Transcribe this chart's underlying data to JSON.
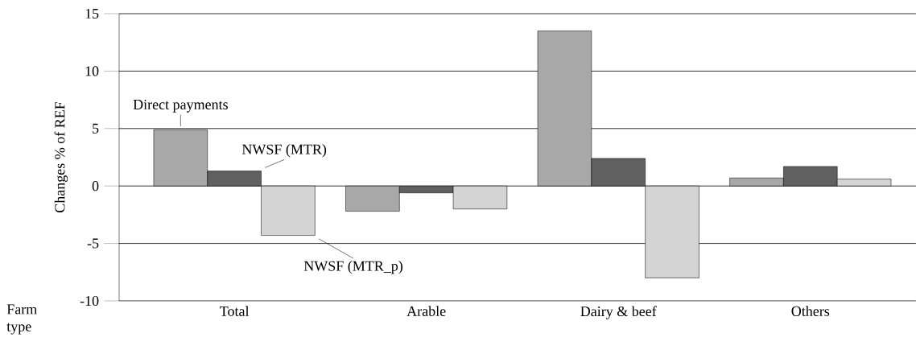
{
  "chart_data": {
    "type": "bar",
    "xlabel": "Farm type",
    "ylabel": "Changes  % of REF",
    "categories": [
      "Total",
      "Arable",
      "Dairy & beef",
      "Others"
    ],
    "series": [
      {
        "name": "Direct payments",
        "color": "#a8a8a8",
        "values": [
          4.9,
          -2.2,
          13.5,
          0.7
        ]
      },
      {
        "name": "NWSF (MTR)",
        "color": "#606060",
        "values": [
          1.3,
          -0.6,
          2.4,
          1.7
        ]
      },
      {
        "name": "NWSF (MTR_p)",
        "color": "#d4d4d4",
        "values": [
          -4.3,
          -2.0,
          -8.0,
          0.6
        ]
      }
    ],
    "ylim": [
      -10,
      15
    ],
    "yticks": [
      -10,
      -5,
      0,
      5,
      10,
      15
    ],
    "grid": "y"
  }
}
